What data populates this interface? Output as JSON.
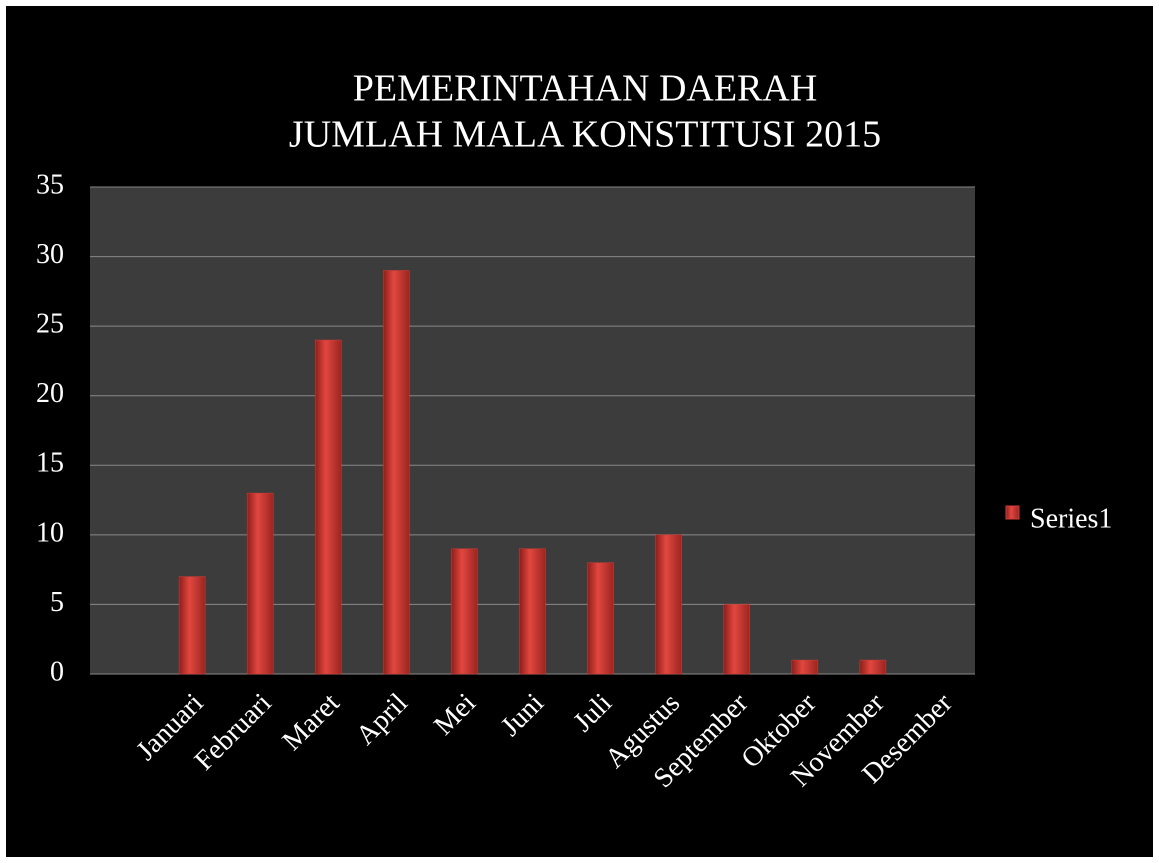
{
  "chart_data": {
    "type": "bar",
    "title": [
      "PEMERINTAHAN DAERAH",
      "JUMLAH MALA KONSTITUSI 2015"
    ],
    "categories": [
      null,
      "Januari",
      "Februari",
      "Maret",
      "April",
      "Mei",
      "Juni",
      "Juli",
      "Agustus",
      "September",
      "Oktober",
      "November",
      "Desember"
    ],
    "series": [
      {
        "name": "Series1",
        "color": "#d63c35",
        "values": [
          null,
          7,
          13,
          24,
          29,
          9,
          9,
          8,
          10,
          5,
          1,
          1,
          0
        ]
      }
    ],
    "ylim": [
      0,
      35
    ],
    "yticks": [
      0,
      5,
      10,
      15,
      20,
      25,
      30,
      35
    ],
    "grid": true,
    "legend": "right"
  }
}
